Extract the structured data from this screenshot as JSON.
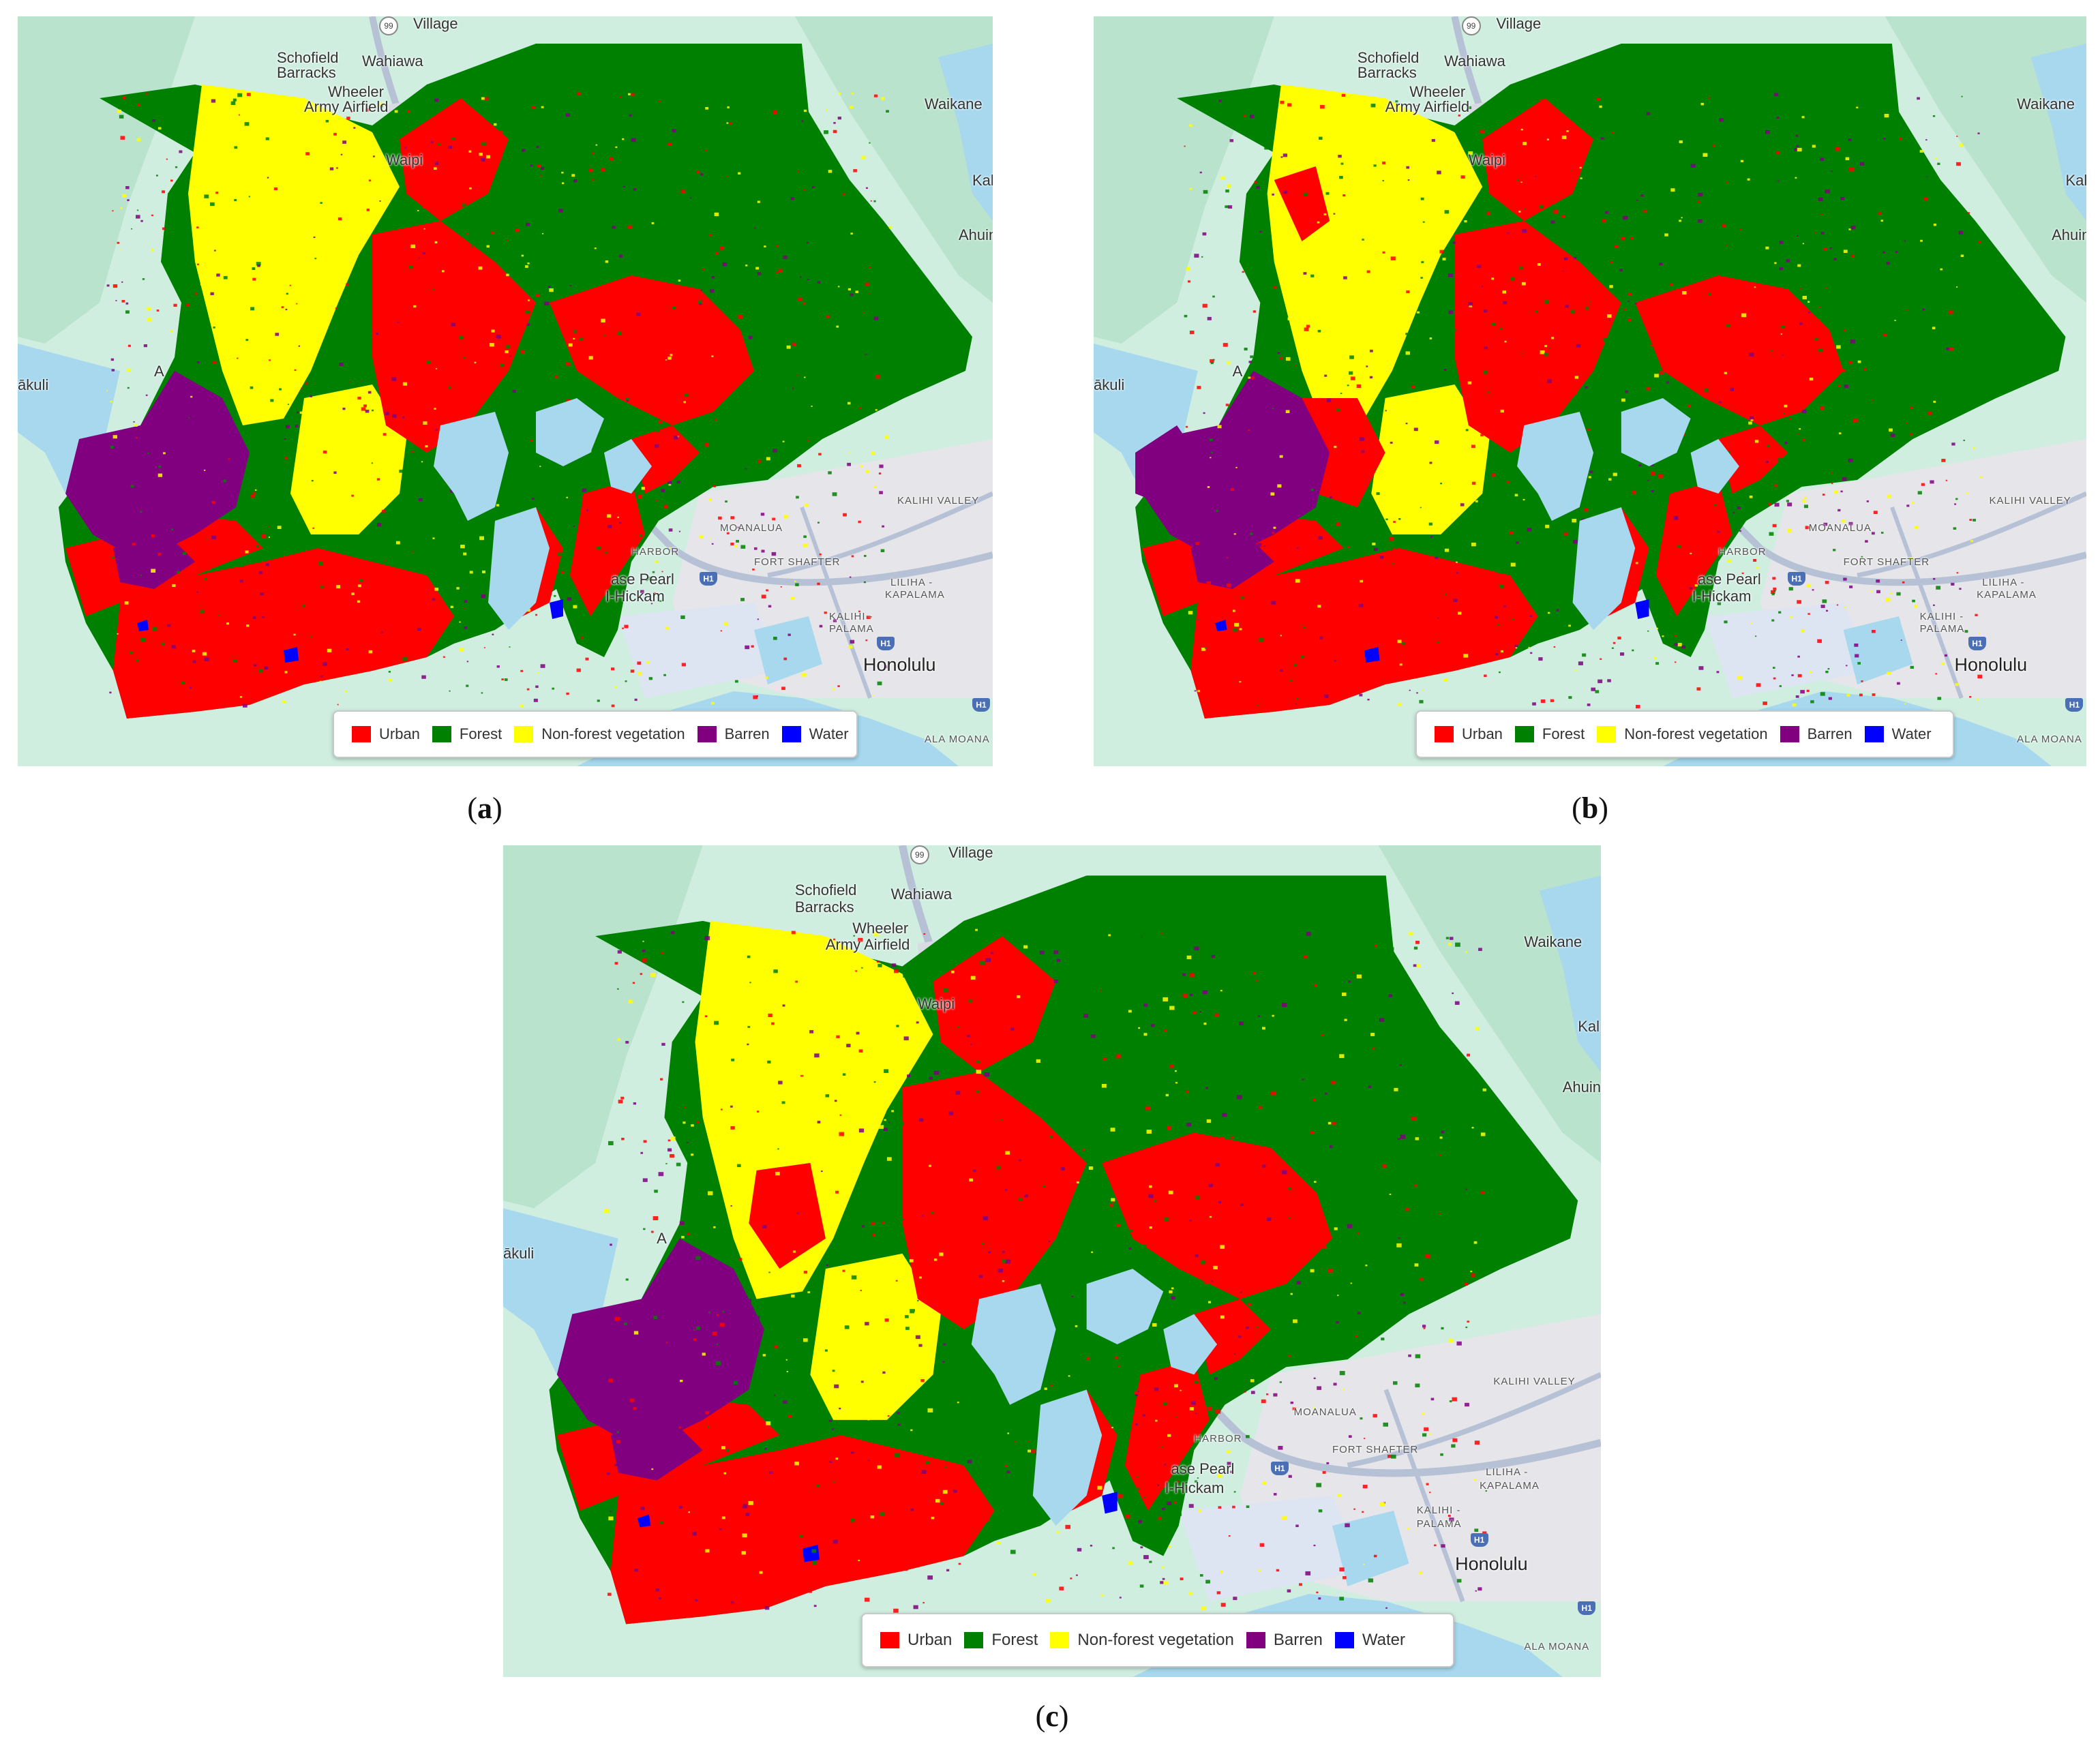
{
  "figure": {
    "panels": [
      {
        "id": "a",
        "caption": "a"
      },
      {
        "id": "b",
        "caption": "b"
      },
      {
        "id": "c",
        "caption": "c"
      }
    ]
  },
  "map_labels": {
    "village": "Village",
    "schofield": "Schofield",
    "barracks": "Barracks",
    "wahiawa": "Wahiawa",
    "wheeler": "Wheeler",
    "army_airfield": "Army Airfield",
    "waipio": "Waipi",
    "waikane": "Waikane",
    "kahaluu": "Kal",
    "ahuimanu": "Ahuin",
    "kapolei": "A",
    "makakilo": "ākuli",
    "moanalua": "MOANALUA",
    "kalihi_valley": "KALIHI VALLEY",
    "harbor": "HARBOR",
    "fort_shafter": "FORT SHAFTER",
    "liliha": "LILIHA -",
    "kapalama": "KAPALAMA",
    "kalihi": "KALIHI -",
    "palama": "PALAMA",
    "pearl_hickam": "ase Pearl",
    "hickam": "I-Hickam",
    "honolulu": "Honolulu",
    "ala_moana": "ALA MOANA",
    "route_99": "99",
    "h1": "H1"
  },
  "legend": {
    "items": [
      {
        "label": "Urban",
        "color": "#ff0000"
      },
      {
        "label": "Forest",
        "color": "#008000"
      },
      {
        "label": "Non-forest vegetation",
        "color": "#ffff00"
      },
      {
        "label": "Barren",
        "color": "#800080"
      },
      {
        "label": "Water",
        "color": "#0000ff"
      }
    ]
  },
  "colors": {
    "ocean": "#a7d8ee",
    "land": "#cfeee0",
    "land_dark": "#b9e3cc",
    "urban_gray": "#e6e6ea",
    "road": "#b6c1d6"
  }
}
